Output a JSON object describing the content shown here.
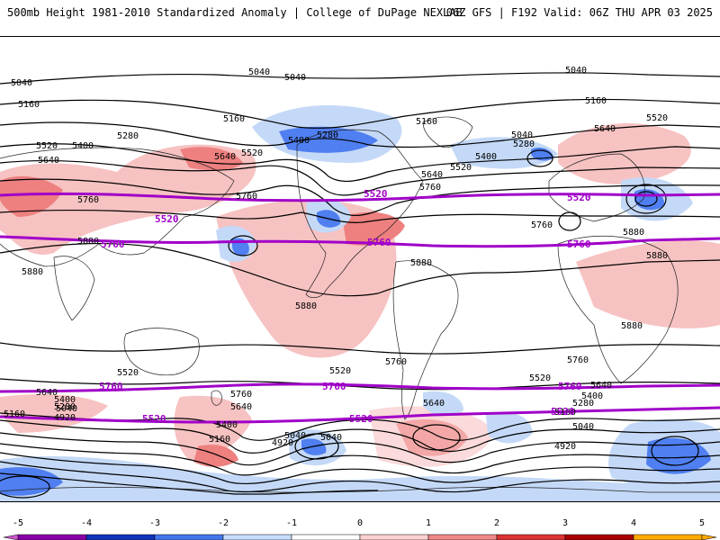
{
  "header": {
    "left_title": "500mb Height 1981-2010 Standardized Anomaly | College of DuPage NEXLAB",
    "right_title": "06Z GFS | F192 Valid: 06Z THU APR 03 2025"
  },
  "colorbar": {
    "ticks": [
      "-5",
      "-4",
      "-3",
      "-2",
      "-1",
      "0",
      "1",
      "2",
      "3",
      "4",
      "5"
    ],
    "colors": [
      "#cc55cc",
      "#8800aa",
      "#1133bb",
      "#4477ee",
      "#c8ddff",
      "#ffffff",
      "#ffd0d0",
      "#f08888",
      "#dd3333",
      "#aa0000",
      "#ffaa00"
    ]
  },
  "contour_labels": {
    "c5040": "5040",
    "c5160": "5160",
    "c5280": "5280",
    "c5400": "5400",
    "c5520": "5520",
    "c5640": "5640",
    "c5760": "5760",
    "c5880": "5880",
    "c4920": "4920"
  },
  "map": {
    "anomaly_positive_color": "#f7c2c2",
    "anomaly_strong_positive_color": "#ee8080",
    "anomaly_negative_color": "#c4d9f7",
    "anomaly_strong_negative_color": "#4f7ff0",
    "contour_color": "#000000",
    "highlight_contour_color": "#a000c8"
  }
}
